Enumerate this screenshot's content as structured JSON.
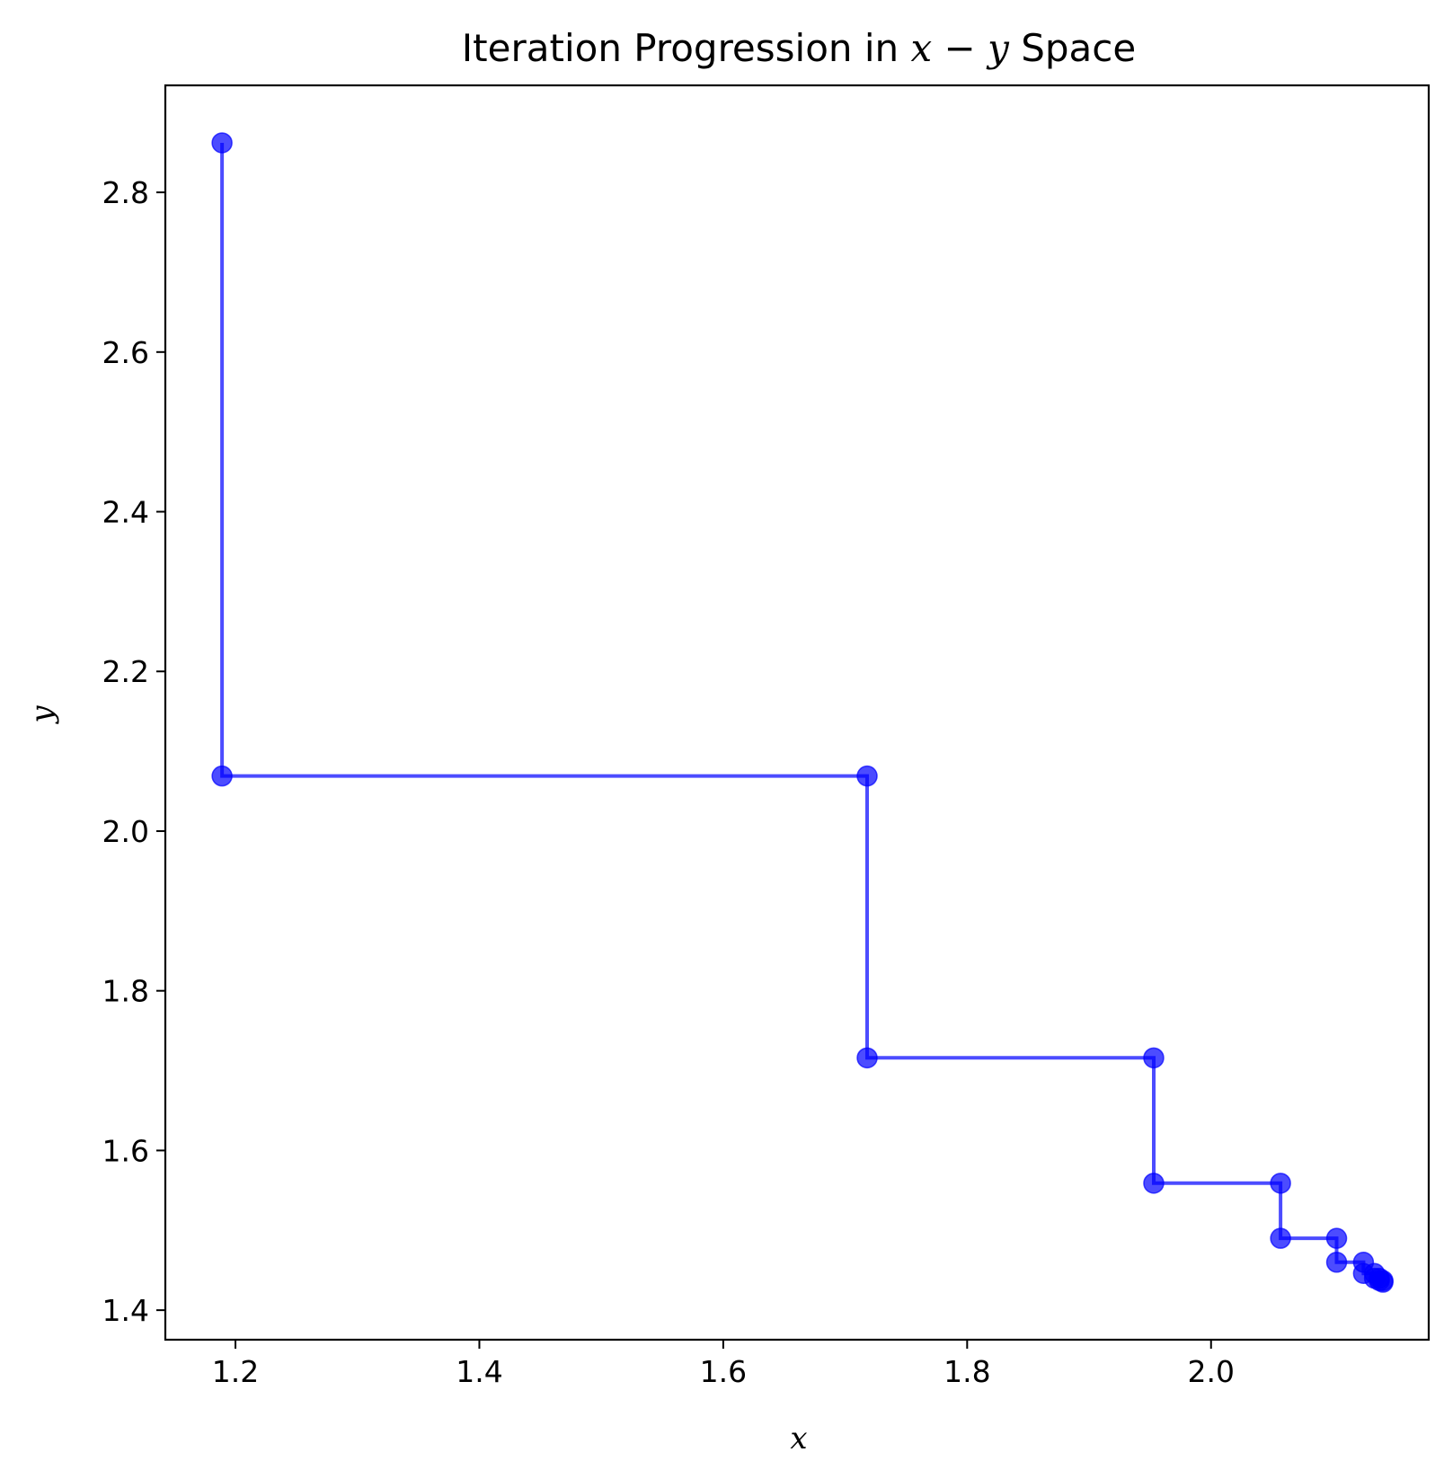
{
  "chart_data": {
    "type": "line",
    "title_parts": [
      "Iteration Progression in ",
      "x",
      " − ",
      "y",
      " Space"
    ],
    "xlabel": "x",
    "ylabel": "y",
    "xlim": [
      1.1425,
      2.1785
    ],
    "ylim": [
      1.363,
      2.934
    ],
    "x_ticks": [
      1.2,
      1.4,
      1.6,
      1.8,
      2.0
    ],
    "x_tick_labels": [
      "1.2",
      "1.4",
      "1.6",
      "1.8",
      "2.0"
    ],
    "y_ticks": [
      1.4,
      1.6,
      1.8,
      2.0,
      2.2,
      2.4,
      2.6,
      2.8
    ],
    "y_tick_labels": [
      "1.4",
      "1.6",
      "1.8",
      "2.0",
      "2.2",
      "2.4",
      "2.6",
      "2.8"
    ],
    "grid": false,
    "color": "#0000ff",
    "series": [
      {
        "markers": true,
        "x": [
          1.189,
          1.189,
          1.718,
          1.718,
          1.953,
          1.953,
          2.057,
          2.057,
          2.103,
          2.103,
          2.125,
          2.125,
          2.134,
          2.134,
          2.138,
          2.138,
          2.141,
          2.141
        ],
        "y": [
          2.862,
          2.069,
          2.069,
          1.716,
          1.716,
          1.559,
          1.559,
          1.49,
          1.49,
          1.46,
          1.46,
          1.446,
          1.446,
          1.44,
          1.44,
          1.437,
          1.437,
          1.435
        ]
      }
    ]
  }
}
